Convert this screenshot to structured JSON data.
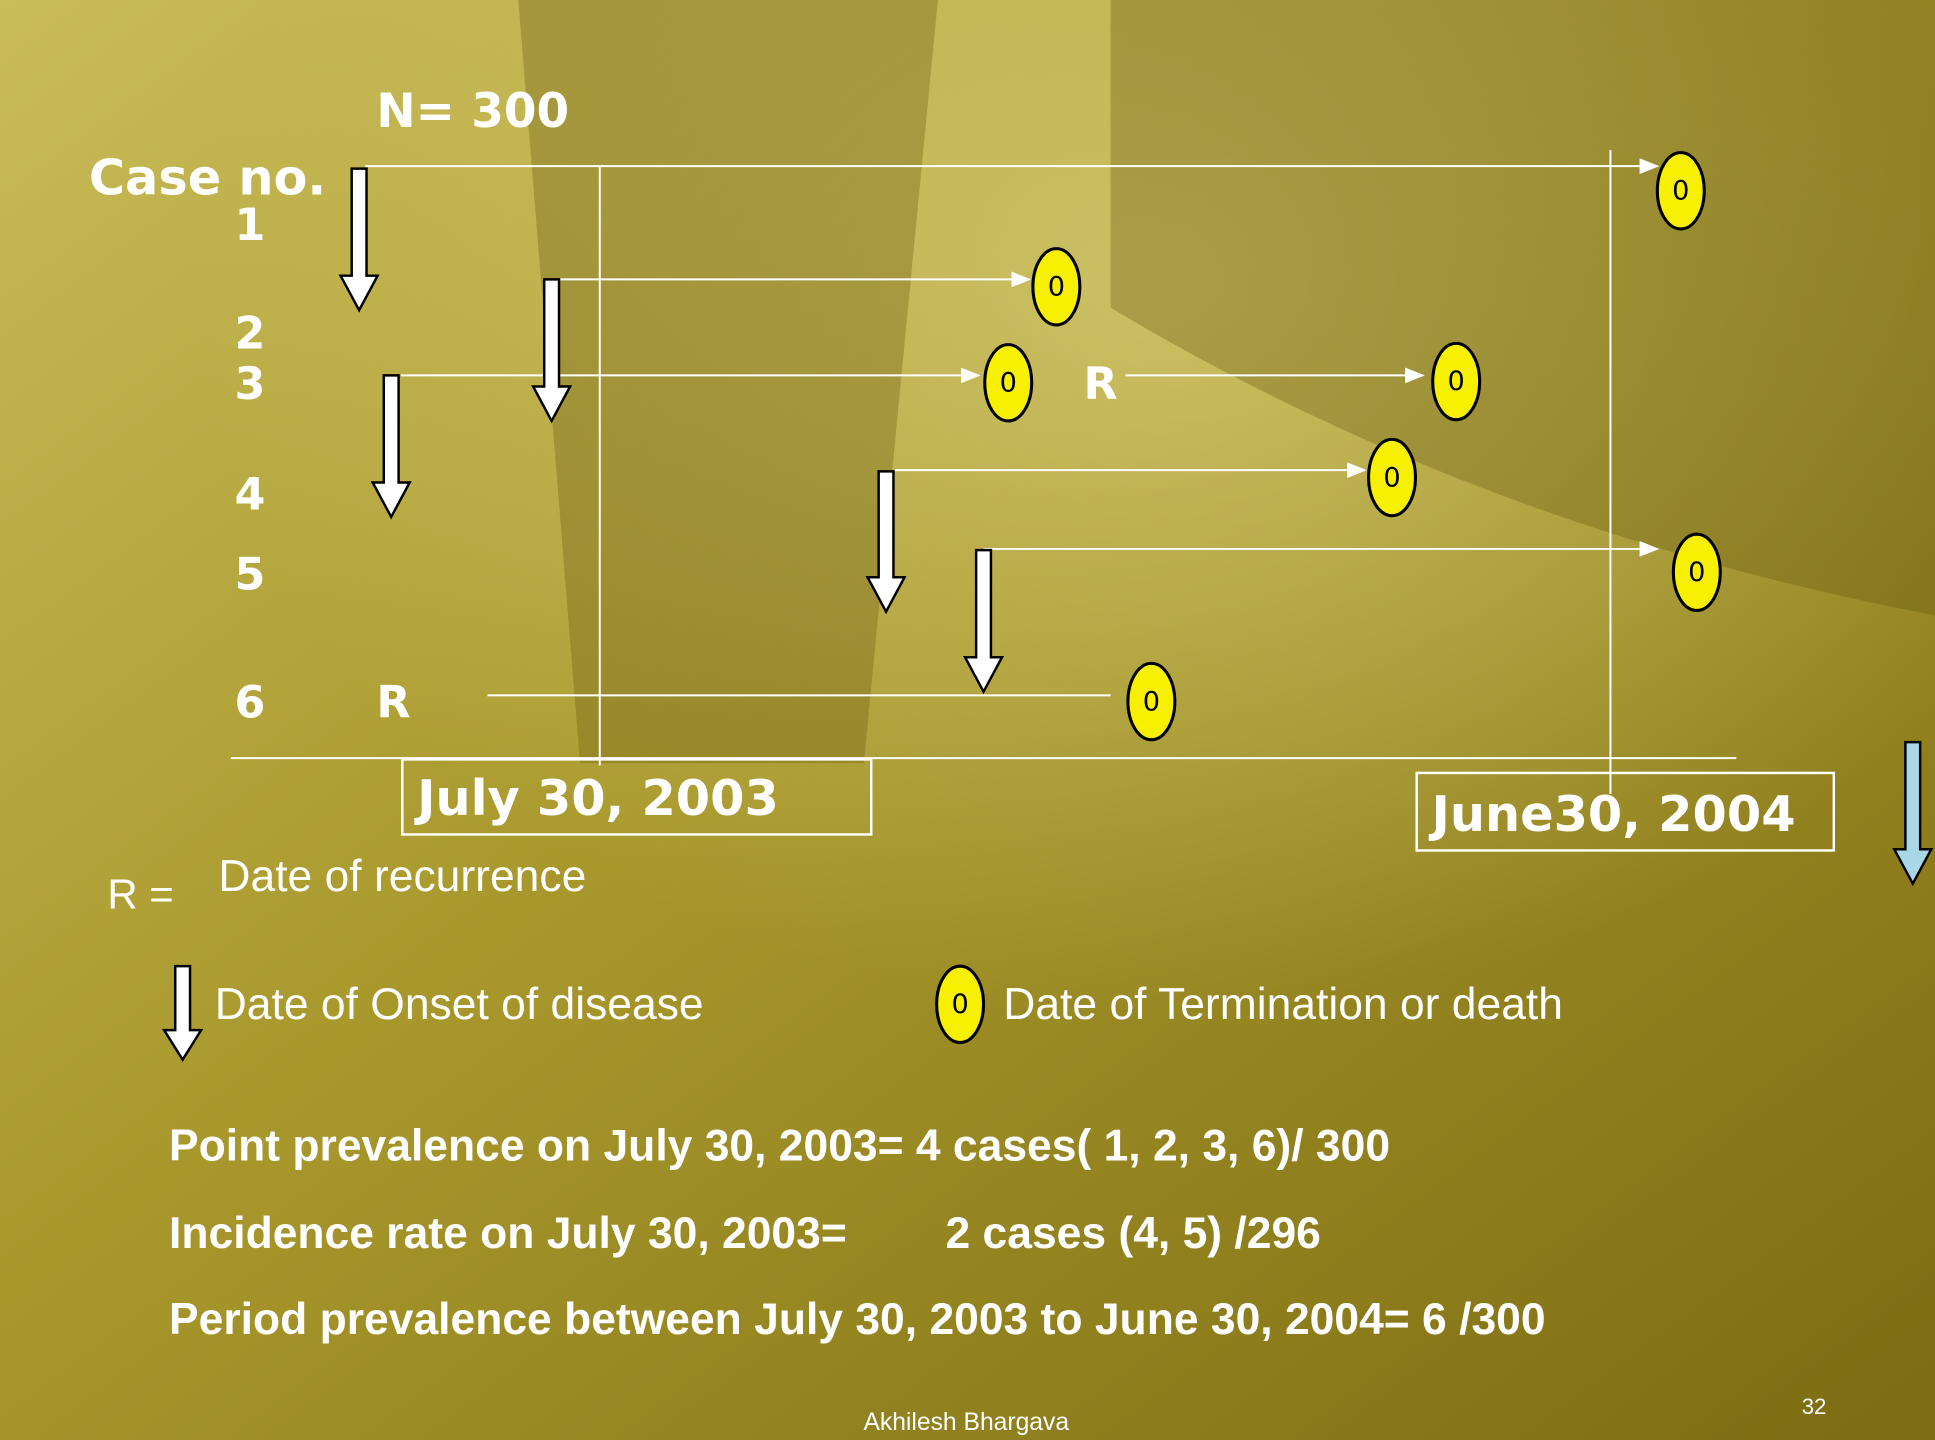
{
  "header": {
    "population": "N= 300",
    "case_label": "Case no."
  },
  "cases": [
    "1",
    "2",
    "3",
    "4",
    "5",
    "6"
  ],
  "recurrence_marks": [
    "R",
    "R"
  ],
  "termination_symbol": "0",
  "dates": {
    "start": "July 30, 2003",
    "end": "June30, 2004"
  },
  "legend": {
    "recurrence_key": "R =",
    "recurrence": "Date of recurrence",
    "onset": "Date of Onset of disease",
    "termination": "Date of Termination or death"
  },
  "statements": [
    "Point prevalence on July 30, 2003= 4 cases( 1, 2, 3, 6)/ 300",
    "Incidence rate on July 30, 2003=        2 cases (4, 5) /296",
    "Period prevalence between July 30, 2003 to June 30, 2004= 6 /300"
  ],
  "footer": {
    "author": "Akhilesh Bhargava",
    "page": "32"
  }
}
